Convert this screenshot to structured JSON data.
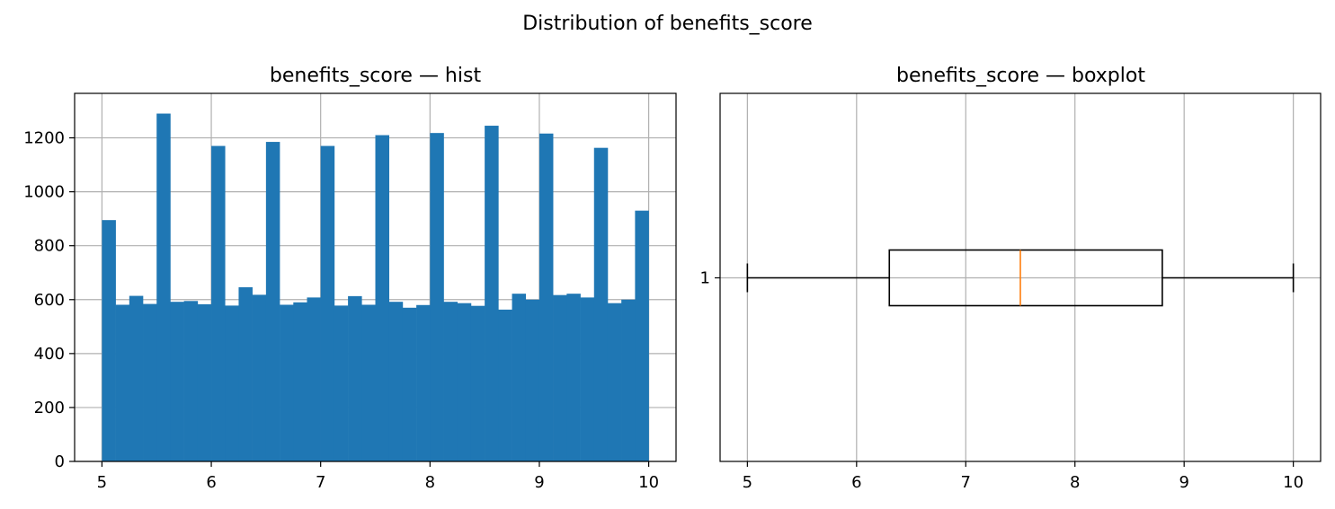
{
  "figure": {
    "suptitle": "Distribution of benefits_score"
  },
  "colors": {
    "bar": "#1f77b4",
    "grid": "#b0b0b0",
    "median": "#ff7f0e",
    "box": "#000000"
  },
  "chart_data": [
    {
      "type": "bar",
      "subtype": "histogram",
      "title": "benefits_score — hist",
      "xlabel": "",
      "ylabel": "",
      "xlim": [
        4.75,
        10.25
      ],
      "ylim": [
        0,
        1365
      ],
      "grid": true,
      "xticks": [
        5,
        6,
        7,
        8,
        9,
        10
      ],
      "yticks": [
        0,
        200,
        400,
        600,
        800,
        1000,
        1200
      ],
      "bin_start": 5,
      "bin_width": 0.125,
      "values": [
        895,
        581,
        614,
        584,
        1290,
        592,
        595,
        583,
        1170,
        578,
        646,
        618,
        1185,
        581,
        590,
        608,
        1170,
        578,
        613,
        581,
        1210,
        592,
        570,
        580,
        1218,
        592,
        587,
        577,
        1245,
        563,
        622,
        600,
        1216,
        617,
        622,
        608,
        1163,
        587,
        600,
        930
      ]
    },
    {
      "type": "boxplot",
      "title": "benefits_score — boxplot",
      "orientation": "horizontal",
      "xlabel": "",
      "ylabel": "",
      "xlim": [
        4.75,
        10.25
      ],
      "grid": true,
      "xticks": [
        5,
        6,
        7,
        8,
        9,
        10
      ],
      "ytick_label": "1",
      "whisker_low": 5.0,
      "q1": 6.3,
      "median": 7.5,
      "q3": 8.8,
      "whisker_high": 10.0
    }
  ]
}
